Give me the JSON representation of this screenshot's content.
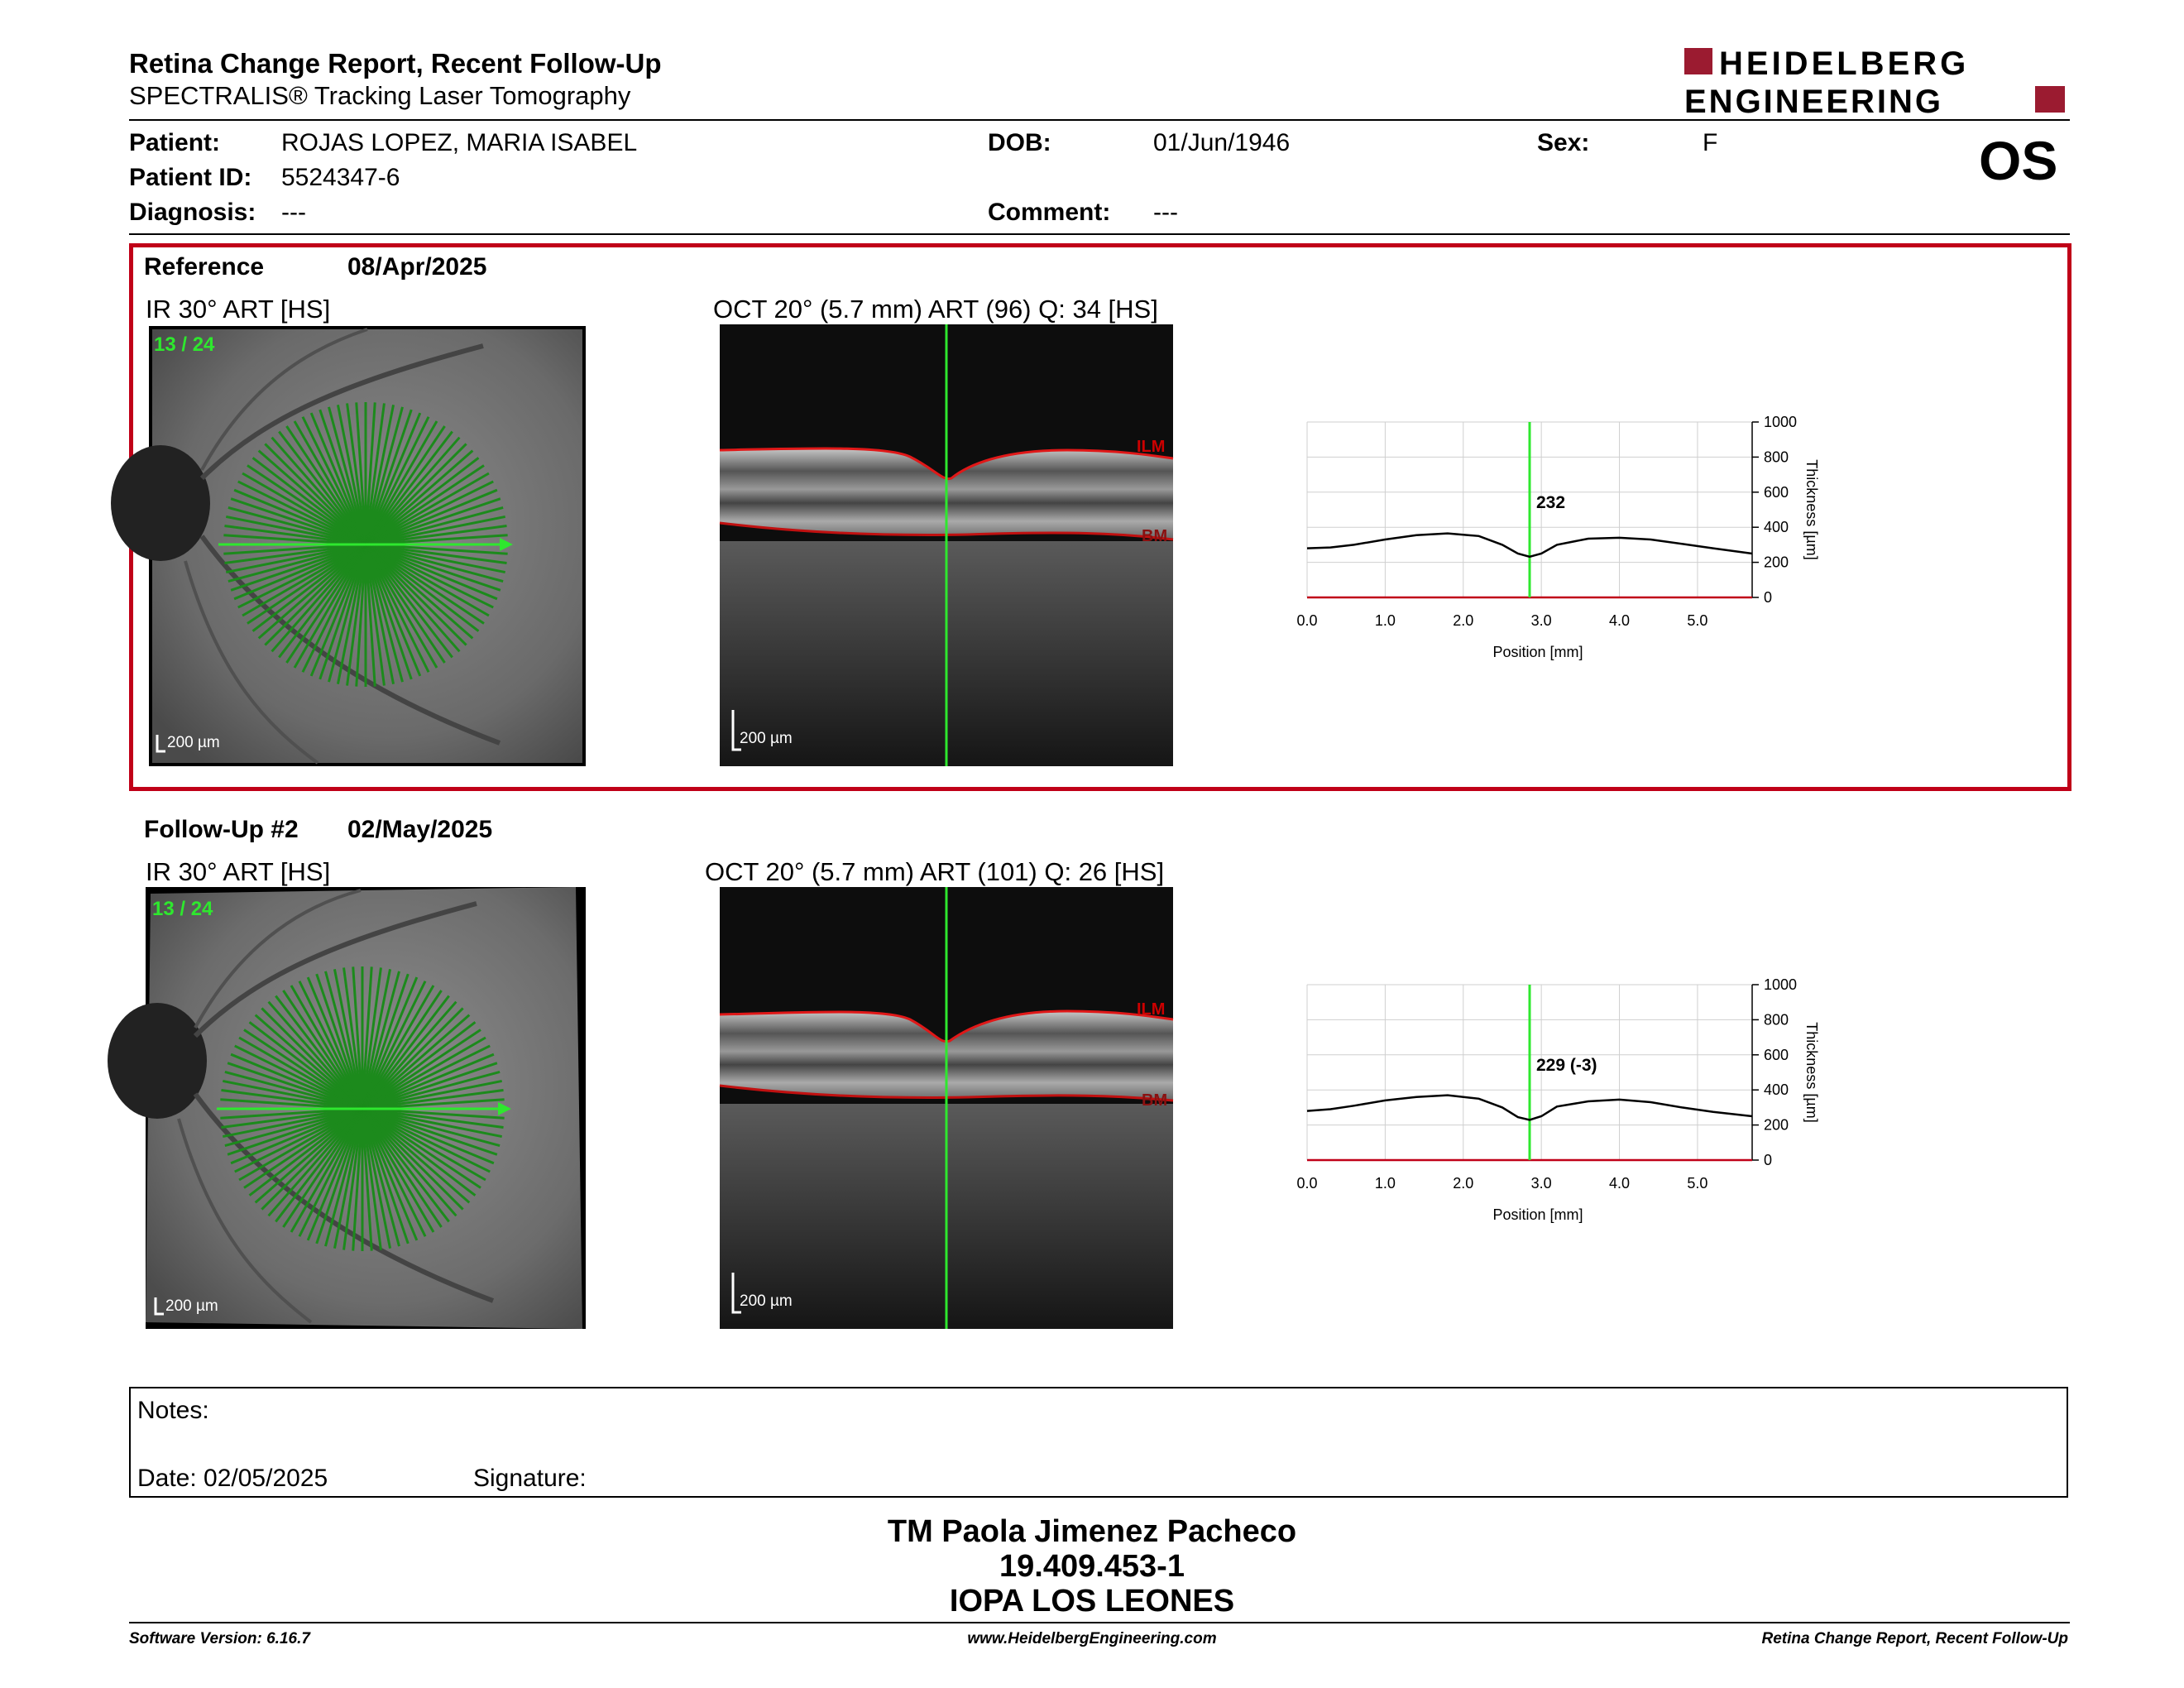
{
  "header": {
    "title": "Retina Change Report, Recent Follow-Up",
    "subtitle": "SPECTRALIS® Tracking Laser Tomography",
    "logo_line1": "HEIDELBERG",
    "logo_line2": "ENGINEERING",
    "brand_color": "#9b1b30"
  },
  "patient": {
    "patient_label": "Patient:",
    "patient_value": "ROJAS LOPEZ, MARIA ISABEL",
    "id_label": "Patient ID:",
    "id_value": "5524347-6",
    "diagnosis_label": "Diagnosis:",
    "diagnosis_value": "---",
    "dob_label": "DOB:",
    "dob_value": "01/Jun/1946",
    "comment_label": "Comment:",
    "comment_value": "---",
    "sex_label": "Sex:",
    "sex_value": "F",
    "eye": "OS"
  },
  "reference": {
    "label": "Reference",
    "date": "08/Apr/2025",
    "ir_label": "IR 30° ART [HS]",
    "scan_count": "13 / 24",
    "oct_label": "OCT 20° (5.7 mm) ART (96) Q: 34 [HS]",
    "scale": "200 µm",
    "ilm": "ILM",
    "bm": "BM",
    "thickness_label": "232"
  },
  "followup": {
    "label": "Follow-Up #2",
    "date": "02/May/2025",
    "ir_label": "IR 30° ART [HS]",
    "scan_count": "13 / 24",
    "oct_label": "OCT 20° (5.7 mm) ART (101) Q: 26 [HS]",
    "scale": "200 µm",
    "ilm": "ILM",
    "bm": "BM",
    "thickness_label": "229 (-3)"
  },
  "chart_data": [
    {
      "type": "line",
      "xlabel": "Position [mm]",
      "ylabel": "Thickness [µm]",
      "xlim": [
        0,
        5.7
      ],
      "ylim": [
        0,
        1000
      ],
      "xticks": [
        "0.0",
        "1.0",
        "2.0",
        "3.0",
        "4.0",
        "5.0"
      ],
      "yticks": [
        "0",
        "200",
        "400",
        "600",
        "800",
        "1000"
      ],
      "marker_x": 2.85,
      "x": [
        0.0,
        0.3,
        0.6,
        1.0,
        1.4,
        1.8,
        2.2,
        2.5,
        2.7,
        2.85,
        3.0,
        3.2,
        3.6,
        4.0,
        4.4,
        4.8,
        5.2,
        5.7
      ],
      "y": [
        280,
        285,
        300,
        330,
        355,
        365,
        350,
        300,
        250,
        232,
        250,
        300,
        335,
        340,
        330,
        305,
        280,
        250
      ],
      "grid": true
    },
    {
      "type": "line",
      "xlabel": "Position [mm]",
      "ylabel": "Thickness [µm]",
      "xlim": [
        0,
        5.7
      ],
      "ylim": [
        0,
        1000
      ],
      "xticks": [
        "0.0",
        "1.0",
        "2.0",
        "3.0",
        "4.0",
        "5.0"
      ],
      "yticks": [
        "0",
        "200",
        "400",
        "600",
        "800",
        "1000"
      ],
      "marker_x": 2.85,
      "x": [
        0.0,
        0.3,
        0.6,
        1.0,
        1.4,
        1.8,
        2.2,
        2.5,
        2.7,
        2.85,
        3.0,
        3.2,
        3.6,
        4.0,
        4.4,
        4.8,
        5.2,
        5.7
      ],
      "y": [
        280,
        290,
        310,
        340,
        360,
        370,
        350,
        300,
        245,
        229,
        250,
        305,
        335,
        345,
        330,
        300,
        275,
        250
      ],
      "grid": true
    }
  ],
  "notes": {
    "notes_label": "Notes:",
    "date_label": "Date: 02/05/2025",
    "signature_label": "Signature:"
  },
  "signature_block": {
    "name": "TM Paola Jimenez Pacheco",
    "id": "19.409.453-1",
    "institution": "IOPA LOS LEONES"
  },
  "footer": {
    "software": "Software Version: 6.16.7",
    "website": "www.HeidelbergEngineering.com",
    "report": "Retina Change Report, Recent Follow-Up"
  }
}
